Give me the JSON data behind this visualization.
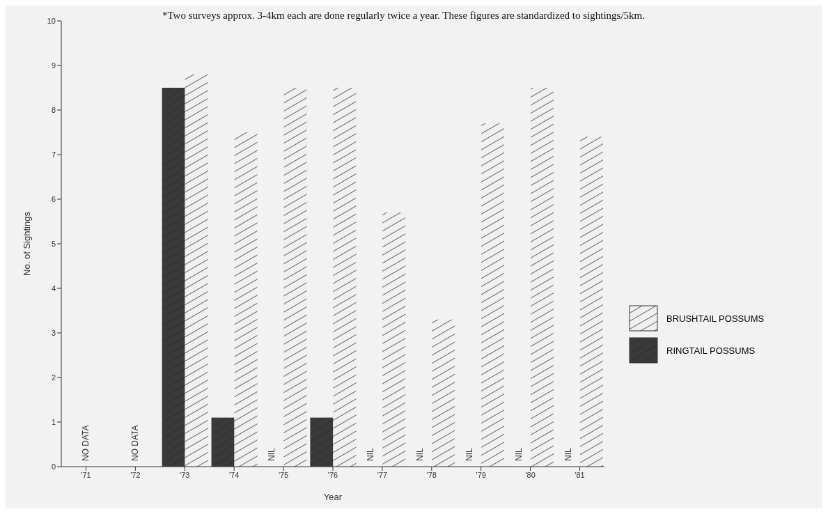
{
  "chart_data": {
    "type": "bar",
    "xlabel": "Year",
    "ylabel": "No. of Sightings",
    "annotations": [
      "*Two surveys approx. 3-4km each are done regularly twice a year. These figures are standardized to sightings/5km."
    ],
    "categories": [
      "'71",
      "'72",
      "'73",
      "'74",
      "'75",
      "'76",
      "'77",
      "'78",
      "'79",
      "'80",
      "'81"
    ],
    "series": [
      {
        "name": "RINGTAIL POSSUMS",
        "color": "#3a3a3a",
        "values": [
          null,
          null,
          8.5,
          1.1,
          null,
          1.1,
          null,
          null,
          null,
          null,
          null
        ],
        "value_labels": [
          "NO DATA",
          "NO DATA",
          null,
          null,
          "NIL",
          null,
          "NIL",
          "NIL",
          "NIL",
          "NIL",
          "NIL"
        ]
      },
      {
        "name": "BRUSHTAIL POSSUMS",
        "color": "#f0f0f0",
        "values": [
          null,
          null,
          8.8,
          7.5,
          8.5,
          8.5,
          5.7,
          3.3,
          7.7,
          8.5,
          7.4
        ]
      }
    ],
    "ylim": [
      0,
      10
    ],
    "yticks": [
      0,
      1,
      2,
      3,
      4,
      5,
      6,
      7,
      8,
      9,
      10
    ],
    "grid": false,
    "legend": "right"
  }
}
